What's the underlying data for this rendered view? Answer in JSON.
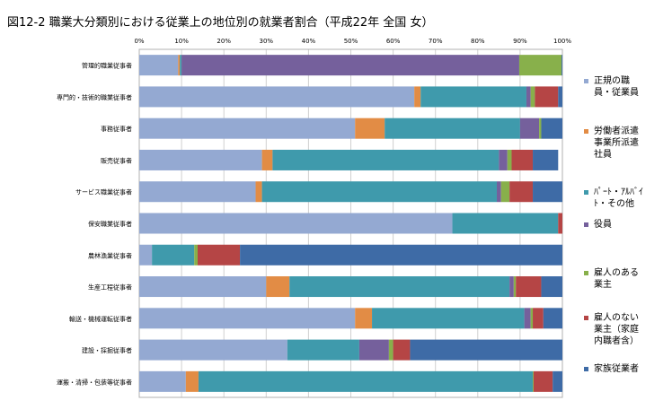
{
  "chart_data": {
    "type": "bar",
    "orientation": "horizontal",
    "stacked": "percent",
    "title": "図12-2 職業大分類別における従業上の地位別の就業者割合（平成22年 全国 女）",
    "xlabel": "",
    "ylabel": "",
    "xlim": [
      0,
      100
    ],
    "x_ticks": [
      "0%",
      "10%",
      "20%",
      "30%",
      "40%",
      "50%",
      "60%",
      "70%",
      "80%",
      "90%",
      "100%"
    ],
    "grid": true,
    "legend_position": "right",
    "categories": [
      "管理的職業従事者",
      "専門的・技術的職業従事者",
      "事務従事者",
      "販売従事者",
      "サービス職業従事者",
      "保安職業従事者",
      "農林漁業従事者",
      "生産工程従事者",
      "輸送・機械運転従事者",
      "建設・採掘従事者",
      "運搬・清掃・包装等従事者"
    ],
    "series": [
      {
        "name": "正規の職員・従業員",
        "legend_lines": [
          "正規の職",
          "員・従業員"
        ],
        "color": "#94a9d2",
        "values": [
          9.2,
          65,
          51,
          29,
          27.5,
          74,
          3,
          30,
          51,
          35,
          11
        ]
      },
      {
        "name": "労働者派遣事業所派遣社員",
        "legend_lines": [
          "労働者派遣",
          "事業所派遣",
          "社員"
        ],
        "color": "#e28c45",
        "values": [
          0.4,
          1.5,
          7,
          2.5,
          1.5,
          0,
          0,
          5.5,
          4,
          0,
          3
        ]
      },
      {
        "name": "パート・アルバイト・その他",
        "legend_lines": [
          "ﾊﾟｰﾄ・ｱﾙﾊﾞｲ",
          "ﾄ・その他"
        ],
        "color": "#3f9aac",
        "values": [
          0.4,
          25,
          32,
          53.5,
          55.5,
          25,
          10,
          52,
          36,
          17,
          79
        ]
      },
      {
        "name": "役員",
        "legend_lines": [
          "役員"
        ],
        "color": "#75609c",
        "values": [
          79.8,
          1,
          4.5,
          2,
          1,
          0,
          0,
          1,
          1.5,
          7,
          0
        ]
      },
      {
        "name": "雇人のある業主",
        "legend_lines": [
          "雇人のある",
          "業主"
        ],
        "color": "#88b04b",
        "values": [
          10,
          1,
          0.5,
          1,
          2,
          0,
          0.8,
          0.5,
          0.5,
          1,
          0.2
        ]
      },
      {
        "name": "雇人のない業主（家庭内職者含）",
        "legend_lines": [
          "雇人のない",
          "業主（家庭",
          "内職者含）"
        ],
        "color": "#b54545",
        "values": [
          0,
          5.5,
          0,
          5,
          5.5,
          1,
          10,
          6,
          2.5,
          4,
          4.5
        ]
      },
      {
        "name": "家族従業者",
        "legend_lines": [
          "家族従業者"
        ],
        "color": "#3e6ba6",
        "values": [
          0.2,
          1,
          5,
          6,
          7,
          0,
          76.2,
          5,
          4.5,
          36,
          2.3
        ]
      }
    ]
  }
}
